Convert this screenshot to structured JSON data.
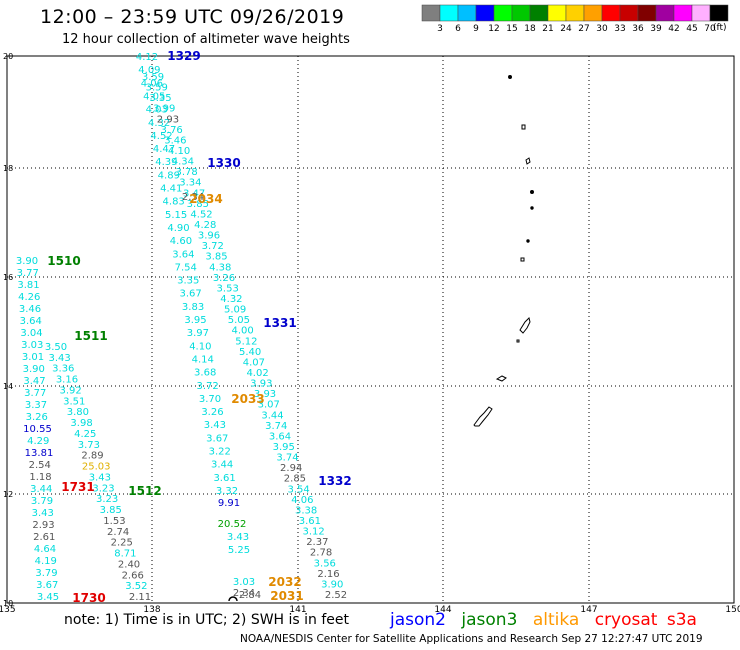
{
  "title": "12:00 – 23:59 UTC 09/26/2019",
  "subtitle": "12 hour collection of altimeter wave heights",
  "colorbar": {
    "unit": "(ft)",
    "ticks": [
      "3",
      "6",
      "9",
      "12",
      "15",
      "18",
      "21",
      "24",
      "27",
      "30",
      "33",
      "36",
      "39",
      "42",
      "45",
      "70"
    ],
    "colors": [
      "#7f7f7f",
      "#00ffff",
      "#00bfff",
      "#0000ff",
      "#00ff00",
      "#00c800",
      "#008000",
      "#ffff00",
      "#ffd000",
      "#ffa000",
      "#ff0000",
      "#c80000",
      "#800000",
      "#a000a0",
      "#ff00ff",
      "#ffb0ff",
      "#000000"
    ]
  },
  "axes": {
    "x_labels": [
      "135",
      "138",
      "141",
      "144",
      "147",
      "150"
    ],
    "y_labels": [
      "20",
      "18",
      "16",
      "14",
      "12",
      "10"
    ]
  },
  "orbits": [
    "1329",
    "1330",
    "1331",
    "1332",
    "1510",
    "1511",
    "1512",
    "1731",
    "1730",
    "2034",
    "2033",
    "2032",
    "2031"
  ],
  "tracks": {
    "t1": [
      "4.12",
      "4.09",
      "4.06",
      "4.05",
      "4.03",
      "4.32",
      "4.52",
      "4.47",
      "4.39",
      "4.89",
      "4.41",
      "4.83",
      "5.15",
      "4.90",
      "4.60",
      "3.64",
      "7.54",
      "3.35",
      "3.67",
      "3.83",
      "3.95",
      "3.97",
      "4.10",
      "4.14",
      "3.68",
      "3.72",
      "3.70",
      "3.26",
      "3.43",
      "3.67",
      "3.22",
      "3.44",
      "3.61",
      "3.32"
    ],
    "t2": [
      "3.59",
      "3.59",
      "3.35",
      "3.99",
      "2.93",
      "3.76",
      "3.46",
      "4.10",
      "4.34",
      "3.78",
      "3.34",
      "3.47",
      "3.85",
      "4.52",
      "4.28",
      "3.96",
      "3.72",
      "3.85",
      "4.38",
      "3.26",
      "3.53",
      "4.32",
      "5.09",
      "5.05",
      "4.00",
      "5.12",
      "5.40",
      "4.07",
      "4.02",
      "3.93",
      "3.93",
      "3.07",
      "3.44",
      "3.74",
      "3.64",
      "3.95",
      "3.74",
      "2.94",
      "2.85",
      "3.54",
      "4.06",
      "3.38",
      "3.61",
      "3.12",
      "2.37",
      "2.78",
      "3.56",
      "2.16",
      "3.90",
      "2.52"
    ],
    "t3": [
      "3.90",
      "3.77",
      "3.81",
      "4.26",
      "3.46",
      "3.64",
      "3.04",
      "3.03",
      "3.01",
      "3.90",
      "3.47",
      "3.77",
      "3.37",
      "3.26",
      "10.55",
      "4.29",
      "13.81",
      "2.54",
      "1.18",
      "3.44",
      "3.79",
      "3.43",
      "2.93",
      "2.61",
      "4.64",
      "4.19",
      "3.79",
      "3.67",
      "3.45"
    ],
    "t4": [
      "3.50",
      "3.43",
      "3.36",
      "3.16",
      "3.92",
      "3.51",
      "3.80",
      "3.98",
      "4.25",
      "3.73",
      "2.89",
      "25.03",
      "3.43",
      "3.23",
      "3.23",
      "3.85",
      "1.53",
      "2.74",
      "2.25",
      "8.71",
      "2.40",
      "2.66",
      "3.52",
      "2.11"
    ],
    "extra": [
      "2.34",
      "2.34",
      "9.91",
      "20.52",
      "3.43",
      "5.25",
      "3.03",
      "2.84"
    ]
  },
  "note": "note: 1) Time is in UTC; 2) SWH is in feet",
  "satellites": [
    "jason2",
    "jason3",
    "altika",
    "cryosat",
    "s3a"
  ],
  "credit": "NOAA/NESDIS Center for Satellite Applications and Research   Sep 27 12:27:47 UTC 2019"
}
